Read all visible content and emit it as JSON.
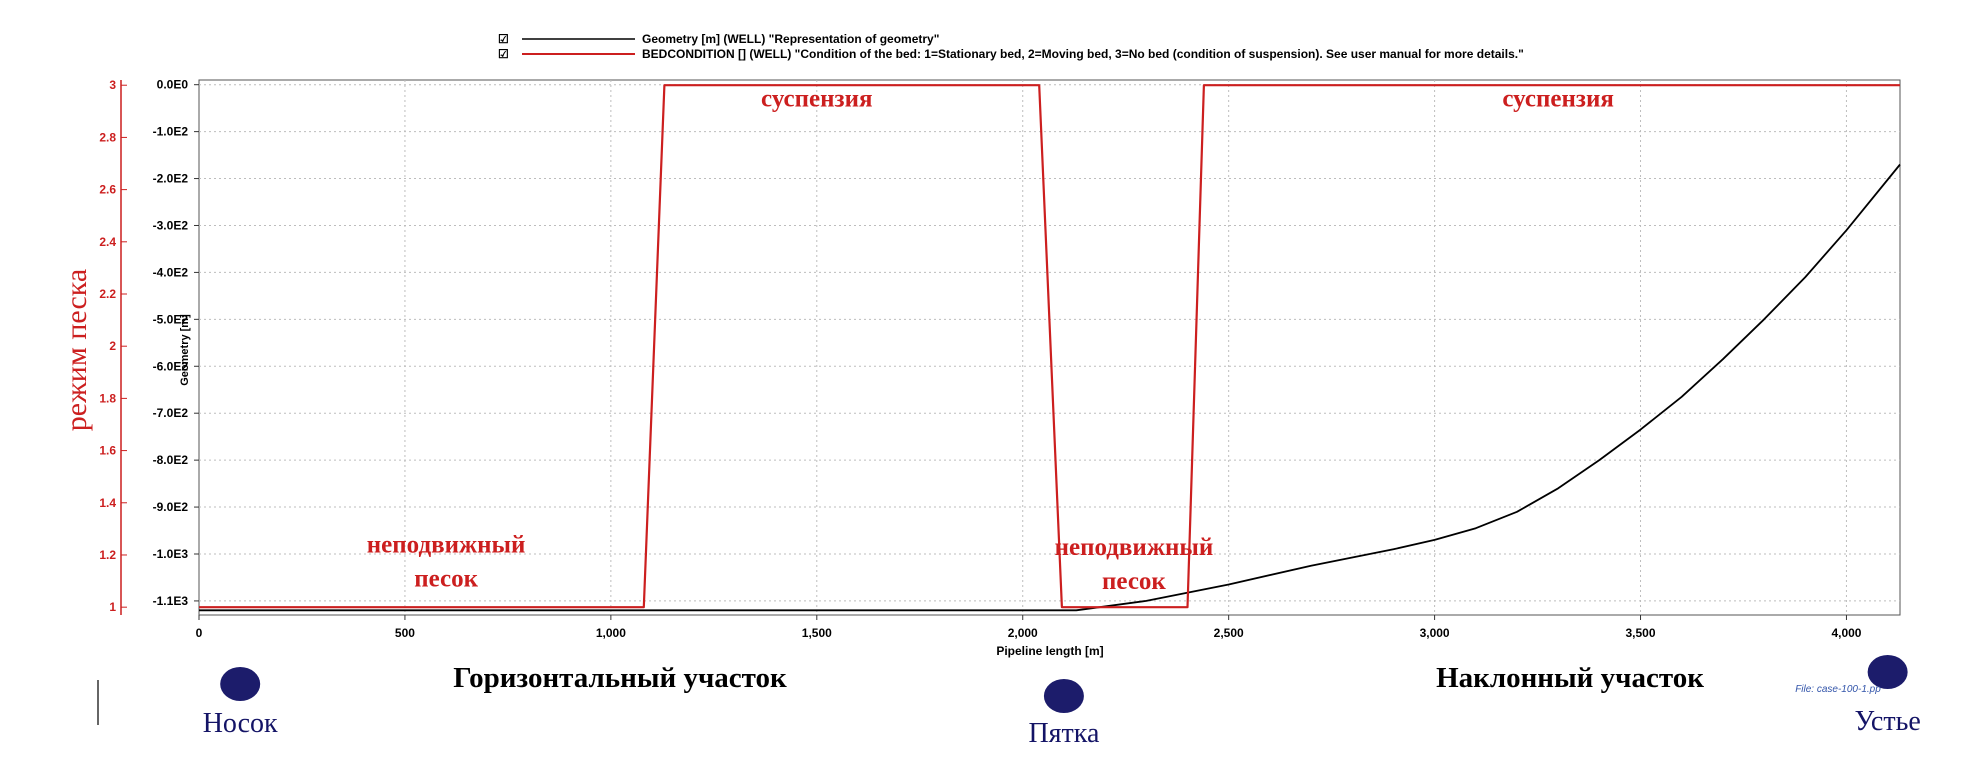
{
  "legend": [
    {
      "text": "Geometry [m] (WELL) \"Representation of geometry\"",
      "color": "#000000",
      "checkbox": "☑"
    },
    {
      "text": "BEDCONDITION [] (WELL) \"Condition of the bed: 1=Stationary bed, 2=Moving bed, 3=No bed (condition of suspension). See user manual for more details.\"",
      "color": "#cc1f1f",
      "checkbox": "☑"
    }
  ],
  "labels": {
    "left_axis_title": "режим песка",
    "geometry_axis_title": "Geometry [m]",
    "xlabel": "Pipeline length [m]",
    "file_note": "File: case-100-1.pp"
  },
  "annotations": [
    {
      "text": "суспензия",
      "x": 1500,
      "y": 2.95
    },
    {
      "text": "суспензия",
      "x": 3300,
      "y": 2.95
    },
    {
      "text": "неподвижный",
      "x": 600,
      "y": 1.24
    },
    {
      "text": "песок",
      "x": 600,
      "y": 1.11
    },
    {
      "text": "неподвижный",
      "x": 2270,
      "y": 1.23
    },
    {
      "text": "песок",
      "x": 2270,
      "y": 1.1
    }
  ],
  "sections": [
    {
      "text": "Горизонтальный участок"
    },
    {
      "text": "Наклонный участок"
    }
  ],
  "markers": [
    {
      "label": "Носок",
      "x": 100,
      "color": "#1c1c6b"
    },
    {
      "label": "Пятка",
      "x": 2100,
      "color": "#1c1c6b"
    },
    {
      "label": "Устье",
      "x": 4100,
      "color": "#1c1c6b"
    }
  ],
  "chart_data": {
    "type": "line",
    "xlabel": "Pipeline length [m]",
    "xlim": [
      0,
      4130
    ],
    "x_ticks": [
      {
        "value": 0,
        "label": "0"
      },
      {
        "value": 500,
        "label": "500"
      },
      {
        "value": 1000,
        "label": "1,000"
      },
      {
        "value": 1500,
        "label": "1,500"
      },
      {
        "value": 2000,
        "label": "2,000"
      },
      {
        "value": 2500,
        "label": "2,500"
      },
      {
        "value": 3000,
        "label": "3,000"
      },
      {
        "value": 3500,
        "label": "3,500"
      },
      {
        "value": 4000,
        "label": "4,000"
      }
    ],
    "y_left": {
      "title": "режим песка",
      "ylim": [
        0.97,
        3.02
      ],
      "ticks": [
        {
          "value": 1,
          "label": "1"
        },
        {
          "value": 1.2,
          "label": "1.2"
        },
        {
          "value": 1.4,
          "label": "1.4"
        },
        {
          "value": 1.6,
          "label": "1.6"
        },
        {
          "value": 1.8,
          "label": "1.8"
        },
        {
          "value": 2,
          "label": "2"
        },
        {
          "value": 2.2,
          "label": "2.2"
        },
        {
          "value": 2.4,
          "label": "2.4"
        },
        {
          "value": 2.6,
          "label": "2.6"
        },
        {
          "value": 2.8,
          "label": "2.8"
        },
        {
          "value": 3,
          "label": "3"
        }
      ]
    },
    "y_right": {
      "title": "Geometry [m]",
      "ylim": [
        -1130,
        10
      ],
      "ticks": [
        {
          "value": 0,
          "label": "0.0E0"
        },
        {
          "value": -100,
          "label": "-1.0E2"
        },
        {
          "value": -200,
          "label": "-2.0E2"
        },
        {
          "value": -300,
          "label": "-3.0E2"
        },
        {
          "value": -400,
          "label": "-4.0E2"
        },
        {
          "value": -500,
          "label": "-5.0E2"
        },
        {
          "value": -600,
          "label": "-6.0E2"
        },
        {
          "value": -700,
          "label": "-7.0E2"
        },
        {
          "value": -800,
          "label": "-8.0E2"
        },
        {
          "value": -900,
          "label": "-9.0E2"
        },
        {
          "value": -1000,
          "label": "-1.0E3"
        },
        {
          "value": -1100,
          "label": "-1.1E3"
        }
      ]
    },
    "grid": true,
    "legend_position": "top",
    "series": [
      {
        "name": "Geometry [m] (WELL) \"Representation of geometry\"",
        "axis": "right",
        "color": "#000000",
        "x": [
          0,
          2130,
          2300,
          2500,
          2700,
          2900,
          3000,
          3100,
          3200,
          3300,
          3400,
          3500,
          3600,
          3700,
          3800,
          3900,
          4000,
          4130
        ],
        "y": [
          -1120,
          -1120,
          -1100,
          -1065,
          -1025,
          -990,
          -970,
          -945,
          -910,
          -860,
          -800,
          -735,
          -665,
          -585,
          -500,
          -410,
          -310,
          -170
        ]
      },
      {
        "name": "BEDCONDITION [] (WELL) \"Condition of the bed: 1=Stationary bed, 2=Moving bed, 3=No bed (condition of suspension). See user manual for more details.\"",
        "axis": "left",
        "color": "#cc1f1f",
        "x": [
          0,
          1080,
          1130,
          2040,
          2095,
          2400,
          2440,
          4130
        ],
        "y": [
          1,
          1,
          3,
          3,
          1,
          1,
          3,
          3
        ]
      }
    ]
  }
}
